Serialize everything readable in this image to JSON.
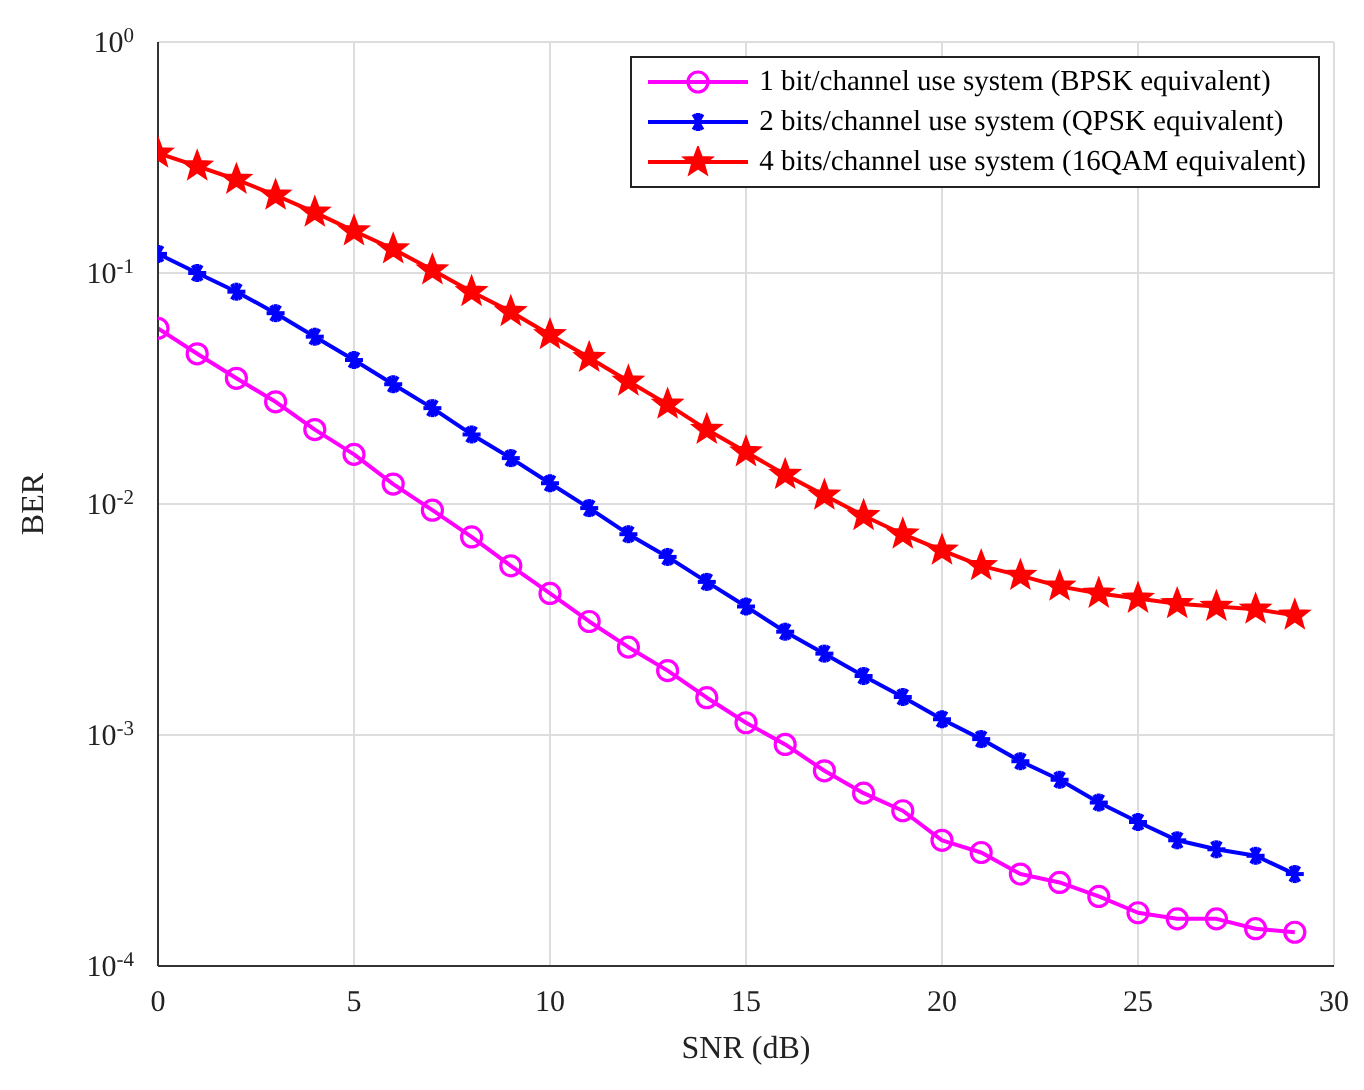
{
  "chart_data": {
    "type": "line",
    "xlabel": "SNR (dB)",
    "ylabel": "BER",
    "log": "y",
    "grid": true,
    "legend": "top right",
    "line_style": "solid",
    "x": [
      0,
      1,
      2,
      3,
      4,
      5,
      6,
      7,
      8,
      9,
      10,
      11,
      12,
      13,
      14,
      15,
      16,
      17,
      18,
      19,
      20,
      21,
      22,
      23,
      24,
      25,
      26,
      27,
      28,
      29
    ],
    "xlim": [
      0,
      30
    ],
    "xticks": [
      0,
      5,
      10,
      15,
      20,
      25,
      30
    ],
    "ylim": [
      0.0001,
      1
    ],
    "yticks": [
      {
        "value": 0.0001,
        "label": "10$^{-4}$"
      },
      {
        "value": 0.001,
        "label": "10$^{-3}$"
      },
      {
        "value": 0.01,
        "label": "10$^{-2}$"
      },
      {
        "value": 0.1,
        "label": "10$^{-1}$"
      },
      {
        "value": 1,
        "label": "10$^{0}$"
      }
    ],
    "series": [
      {
        "name": "1 bit/channel use system (BPSK equivalent)",
        "color": "#ff00ff",
        "marker": "circle",
        "values": [
          0.0576,
          0.0447,
          0.035,
          0.0277,
          0.021,
          0.0164,
          0.0122,
          0.0094,
          0.0072,
          0.0054,
          0.0041,
          0.0031,
          0.0024,
          0.0019,
          0.00145,
          0.00113,
          0.00091,
          0.0007,
          0.00056,
          0.00047,
          0.00035,
          0.00031,
          0.00025,
          0.00023,
          0.0002,
          0.00017,
          0.00016,
          0.00016,
          0.000145,
          0.00014
        ]
      },
      {
        "name": "2 bits/channel use system (QPSK equivalent)",
        "color": "#0000ff",
        "marker": "cross",
        "values": [
          0.121,
          0.1,
          0.083,
          0.067,
          0.053,
          0.042,
          0.033,
          0.026,
          0.02,
          0.0158,
          0.0123,
          0.0096,
          0.0074,
          0.0059,
          0.0046,
          0.0036,
          0.0028,
          0.00225,
          0.0018,
          0.00146,
          0.00117,
          0.00096,
          0.00077,
          0.00064,
          0.00051,
          0.00042,
          0.00035,
          0.00032,
          0.0003,
          0.00025
        ]
      },
      {
        "name": "4 bits/channel use system (16QAM equivalent)",
        "color": "#ff0000",
        "marker": "star",
        "values": [
          0.33,
          0.29,
          0.254,
          0.217,
          0.183,
          0.152,
          0.127,
          0.103,
          0.083,
          0.068,
          0.054,
          0.043,
          0.034,
          0.027,
          0.021,
          0.0168,
          0.0134,
          0.0109,
          0.0089,
          0.0074,
          0.0063,
          0.0054,
          0.0049,
          0.0044,
          0.0041,
          0.0039,
          0.0037,
          0.0036,
          0.0035,
          0.0033
        ]
      }
    ]
  }
}
